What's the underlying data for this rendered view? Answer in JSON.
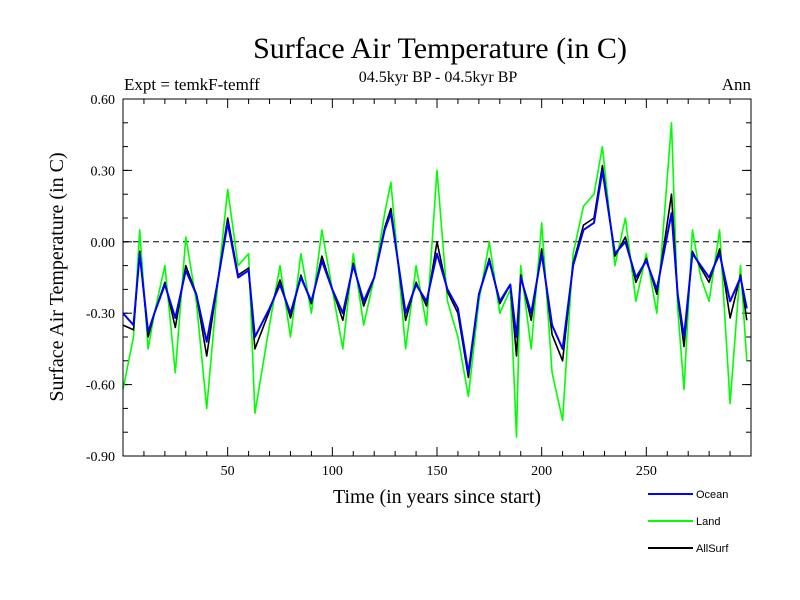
{
  "chart_data": {
    "type": "line",
    "title": "Surface Air Temperature (in C)",
    "subtitle": "04.5kyr BP - 04.5kyr BP",
    "expt_label": "Expt = temkF-temff",
    "season_label": "Ann",
    "xlabel": "Time (in years since start)",
    "ylabel": "Surface Air Temperature (in C)",
    "xlim": [
      0,
      300
    ],
    "ylim": [
      -0.9,
      0.6
    ],
    "x_ticks": [
      50,
      100,
      150,
      200,
      250
    ],
    "x_tick_labels": [
      "50",
      "100",
      "150",
      "200",
      "250"
    ],
    "y_ticks": [
      -0.9,
      -0.6,
      -0.3,
      0.0,
      0.3,
      0.6
    ],
    "y_tick_labels": [
      "-0.90",
      "-0.60",
      "-0.30",
      "0.00",
      "0.30",
      "0.60"
    ],
    "zero_line": "dashed",
    "legend_position": "bottom-right",
    "x": [
      0,
      5,
      8,
      12,
      15,
      20,
      25,
      30,
      35,
      40,
      45,
      50,
      55,
      60,
      63,
      70,
      75,
      80,
      85,
      90,
      95,
      100,
      105,
      110,
      115,
      120,
      125,
      128,
      135,
      140,
      145,
      150,
      155,
      160,
      165,
      170,
      175,
      180,
      185,
      188,
      190,
      195,
      200,
      205,
      210,
      215,
      220,
      225,
      229,
      235,
      240,
      245,
      250,
      255,
      262,
      265,
      268,
      272,
      276,
      280,
      285,
      290,
      295,
      298
    ],
    "series": [
      {
        "name": "Ocean",
        "color": "#0000ff",
        "values": [
          -0.3,
          -0.35,
          -0.05,
          -0.38,
          -0.3,
          -0.18,
          -0.32,
          -0.12,
          -0.22,
          -0.42,
          -0.18,
          0.08,
          -0.15,
          -0.12,
          -0.4,
          -0.28,
          -0.18,
          -0.3,
          -0.15,
          -0.25,
          -0.08,
          -0.2,
          -0.3,
          -0.1,
          -0.25,
          -0.15,
          0.05,
          0.12,
          -0.3,
          -0.18,
          -0.25,
          -0.05,
          -0.2,
          -0.28,
          -0.55,
          -0.22,
          -0.08,
          -0.25,
          -0.18,
          -0.4,
          -0.15,
          -0.3,
          -0.05,
          -0.35,
          -0.45,
          -0.1,
          0.05,
          0.08,
          0.3,
          -0.05,
          0.0,
          -0.15,
          -0.08,
          -0.2,
          0.12,
          -0.22,
          -0.4,
          -0.05,
          -0.1,
          -0.15,
          -0.05,
          -0.25,
          -0.15,
          -0.28
        ]
      },
      {
        "name": "Land",
        "color": "#00ff00",
        "values": [
          -0.62,
          -0.4,
          0.05,
          -0.45,
          -0.3,
          -0.1,
          -0.55,
          0.02,
          -0.25,
          -0.7,
          -0.2,
          0.22,
          -0.1,
          -0.05,
          -0.72,
          -0.35,
          -0.1,
          -0.4,
          -0.05,
          -0.3,
          0.05,
          -0.2,
          -0.45,
          -0.05,
          -0.35,
          -0.15,
          0.12,
          0.25,
          -0.45,
          -0.1,
          -0.35,
          0.3,
          -0.25,
          -0.4,
          -0.65,
          -0.25,
          0.0,
          -0.3,
          -0.2,
          -0.82,
          -0.1,
          -0.45,
          0.08,
          -0.55,
          -0.75,
          -0.05,
          0.15,
          0.2,
          0.4,
          -0.1,
          0.1,
          -0.25,
          -0.05,
          -0.3,
          0.5,
          -0.28,
          -0.62,
          0.05,
          -0.15,
          -0.25,
          0.05,
          -0.68,
          -0.1,
          -0.5
        ]
      },
      {
        "name": "AllSurf",
        "color": "#000000",
        "values": [
          -0.35,
          -0.37,
          -0.04,
          -0.4,
          -0.3,
          -0.17,
          -0.36,
          -0.1,
          -0.22,
          -0.48,
          -0.18,
          0.1,
          -0.14,
          -0.11,
          -0.45,
          -0.29,
          -0.16,
          -0.32,
          -0.14,
          -0.26,
          -0.06,
          -0.2,
          -0.33,
          -0.09,
          -0.27,
          -0.15,
          0.06,
          0.14,
          -0.33,
          -0.17,
          -0.27,
          0.0,
          -0.21,
          -0.3,
          -0.57,
          -0.22,
          -0.07,
          -0.26,
          -0.18,
          -0.48,
          -0.14,
          -0.33,
          -0.03,
          -0.39,
          -0.5,
          -0.09,
          0.07,
          0.1,
          0.32,
          -0.06,
          0.02,
          -0.17,
          -0.07,
          -0.22,
          0.2,
          -0.23,
          -0.44,
          -0.04,
          -0.11,
          -0.17,
          -0.03,
          -0.32,
          -0.14,
          -0.33
        ]
      }
    ]
  }
}
